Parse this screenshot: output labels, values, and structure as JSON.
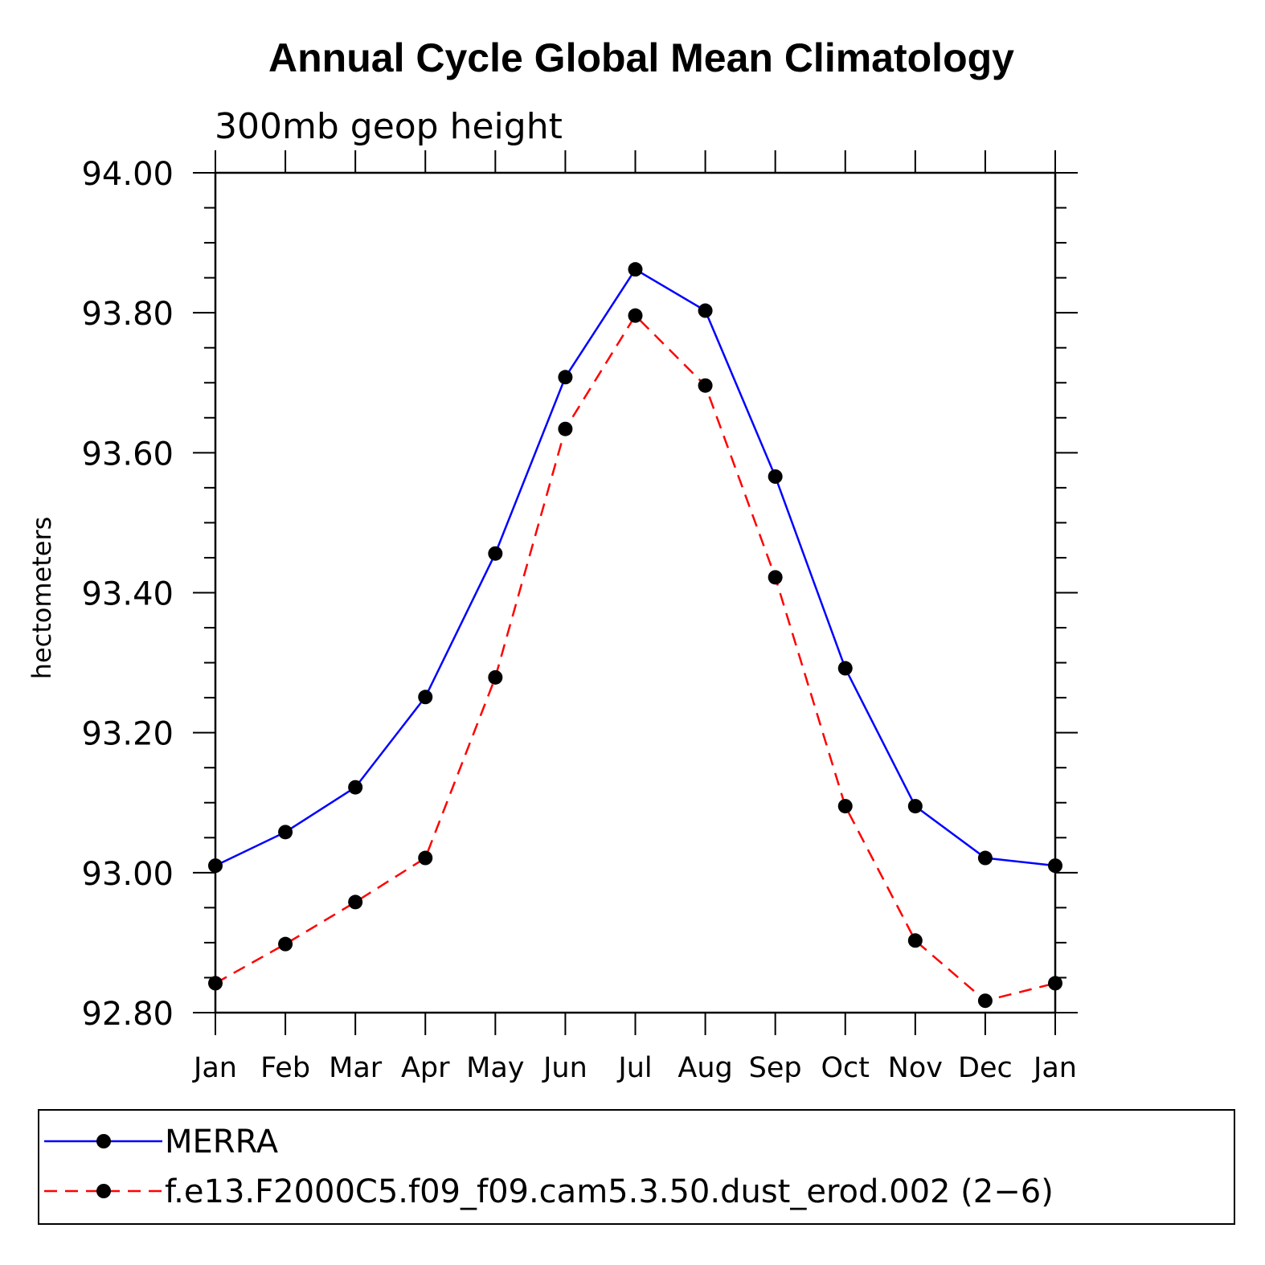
{
  "chart_data": {
    "type": "line",
    "title": "Annual Cycle Global Mean Climatology",
    "subtitle": "300mb geop height",
    "ylabel": "hectometers",
    "xlabel": "",
    "categories": [
      "Jan",
      "Feb",
      "Mar",
      "Apr",
      "May",
      "Jun",
      "Jul",
      "Aug",
      "Sep",
      "Oct",
      "Nov",
      "Dec",
      "Jan"
    ],
    "ylim": [
      92.8,
      94.0
    ],
    "yticks": [
      "92.80",
      "93.00",
      "93.20",
      "93.40",
      "93.60",
      "93.80",
      "94.00"
    ],
    "grid": false,
    "legend_position": "bottom",
    "series": [
      {
        "name": "MERRA",
        "color": "#0000ff",
        "dash": "solid",
        "values": [
          93.01,
          93.058,
          93.122,
          93.251,
          93.456,
          93.708,
          93.862,
          93.803,
          93.566,
          93.292,
          93.095,
          93.021,
          93.01
        ]
      },
      {
        "name": "f.e13.F2000C5.f09_f09.cam5.3.50.dust_erod.002 (2−6)",
        "color": "#ff0000",
        "dash": "dashed",
        "values": [
          92.842,
          92.898,
          92.958,
          93.021,
          93.279,
          93.634,
          93.796,
          93.696,
          93.422,
          93.095,
          92.903,
          92.817,
          92.842
        ]
      }
    ]
  }
}
